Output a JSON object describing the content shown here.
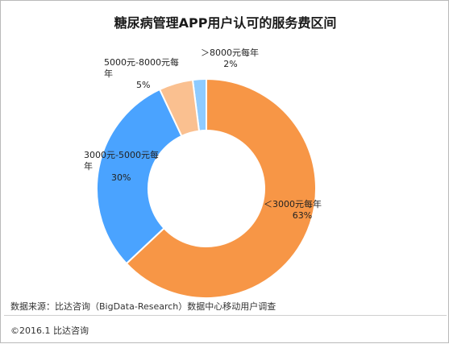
{
  "chart_data": {
    "type": "pie",
    "title": "糖尿病管理APP用户认可的服务费区间",
    "donut": true,
    "slices": [
      {
        "name": "＜3000元每年",
        "value": 63,
        "pct_label": "63%",
        "color": "#f79646"
      },
      {
        "name": "3000元-5000元每年",
        "value": 30,
        "pct_label": "30%",
        "color": "#4aa3ff"
      },
      {
        "name": "5000元-8000元每年",
        "value": 5,
        "pct_label": "5%",
        "color": "#fac090"
      },
      {
        "name": "＞8000元每年",
        "value": 2,
        "pct_label": "2%",
        "color": "#8ecbff"
      }
    ]
  },
  "footer": {
    "source": "数据来源：比达咨询（BigData-Research）数据中心移动用户调查",
    "copyright": "©2016.1  比达咨询"
  }
}
